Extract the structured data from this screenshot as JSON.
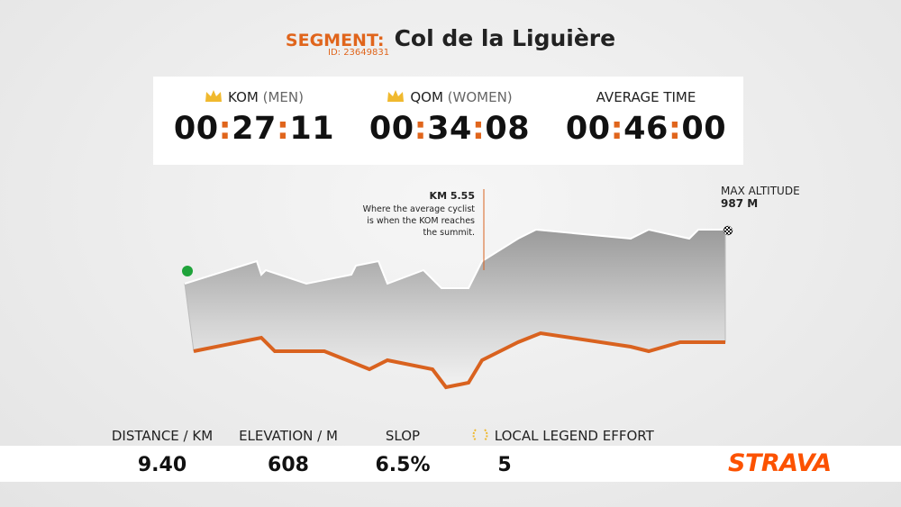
{
  "header": {
    "label": "SEGMENT:",
    "name": "Col de la Liguière",
    "id": "ID: 23649831"
  },
  "times": [
    {
      "label": "KOM",
      "sub": "(MEN)",
      "time": "00:27:11"
    },
    {
      "label": "QOM",
      "sub": "(WOMEN)",
      "time": "00:34:08"
    },
    {
      "label": "AVERAGE TIME",
      "time": "00:46:00"
    }
  ],
  "annotation": {
    "title": "KM 5.55",
    "text": "Where the average cyclist is when the KOM reaches the summit."
  },
  "max_altitude": {
    "label": "MAX ALTITUDE",
    "value": "987 M"
  },
  "stats": [
    {
      "label": "DISTANCE / KM",
      "value": "9.40"
    },
    {
      "label": "ELEVATION / M",
      "value": "608"
    },
    {
      "label": "SLOP",
      "value": "6.5%"
    },
    {
      "label": "LOCAL LEGEND EFFORT",
      "value": "5"
    }
  ],
  "logo": "STRAVA"
}
